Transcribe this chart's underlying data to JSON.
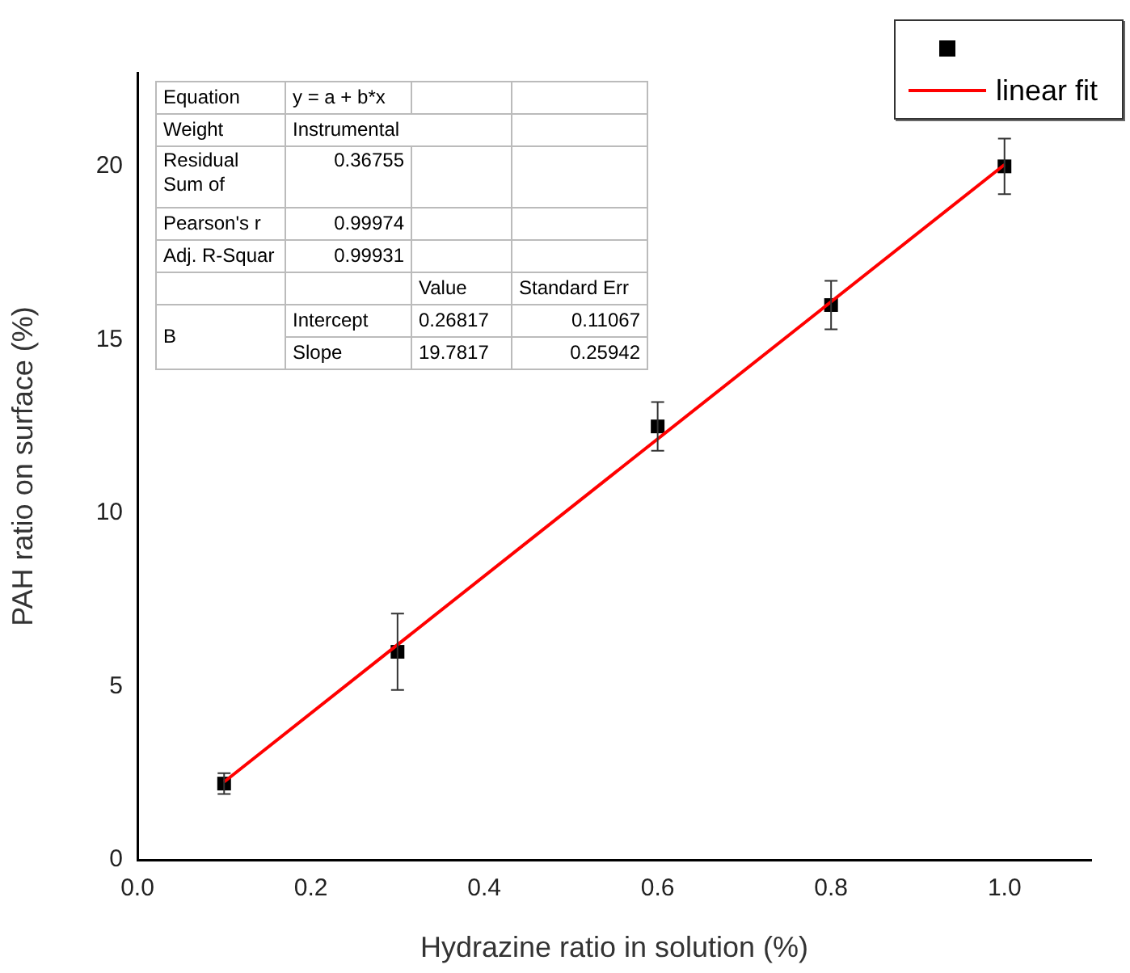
{
  "chart_data": {
    "type": "scatter",
    "xlabel": "Hydrazine ratio in solution (%)",
    "ylabel": "PAH ratio on surface (%)",
    "xlim": [
      0,
      1.1
    ],
    "xticks": [
      {
        "value": 0,
        "label": "0.0"
      },
      0.2,
      0.4,
      0.6,
      0.8,
      {
        "value": 1,
        "label": "1.0"
      }
    ],
    "ylim": [
      0,
      22.7
    ],
    "yticks": [
      0,
      5,
      10,
      15,
      20
    ],
    "series": [
      {
        "type": "scatter",
        "color": "#000000",
        "marker": "square",
        "x": [
          0.1,
          0.3,
          0.6,
          0.8,
          1.0
        ],
        "values": [
          2.2,
          6.0,
          12.5,
          16.0,
          20.0
        ],
        "errors": [
          0.3,
          1.1,
          0.7,
          0.7,
          0.8
        ]
      },
      {
        "type": "line",
        "name": "linear fit",
        "color": "#ff0000",
        "line_style": "solid",
        "x": [
          0.1,
          1.0
        ],
        "values": [
          2.25,
          20.05
        ]
      }
    ],
    "annotations": [
      "Equation",
      "y = a + b*x",
      "Weight",
      "Instrumental",
      "Residual Sum of",
      "0.36755",
      "Pearson's r",
      "0.99974",
      "Adj. R-Squar",
      "0.99931",
      "Value",
      "Standard Err",
      "B",
      "Intercept",
      "0.26817",
      "0.11067",
      "Slope",
      "19.7817",
      "0.25942"
    ],
    "legend": "top right",
    "grid": false
  }
}
